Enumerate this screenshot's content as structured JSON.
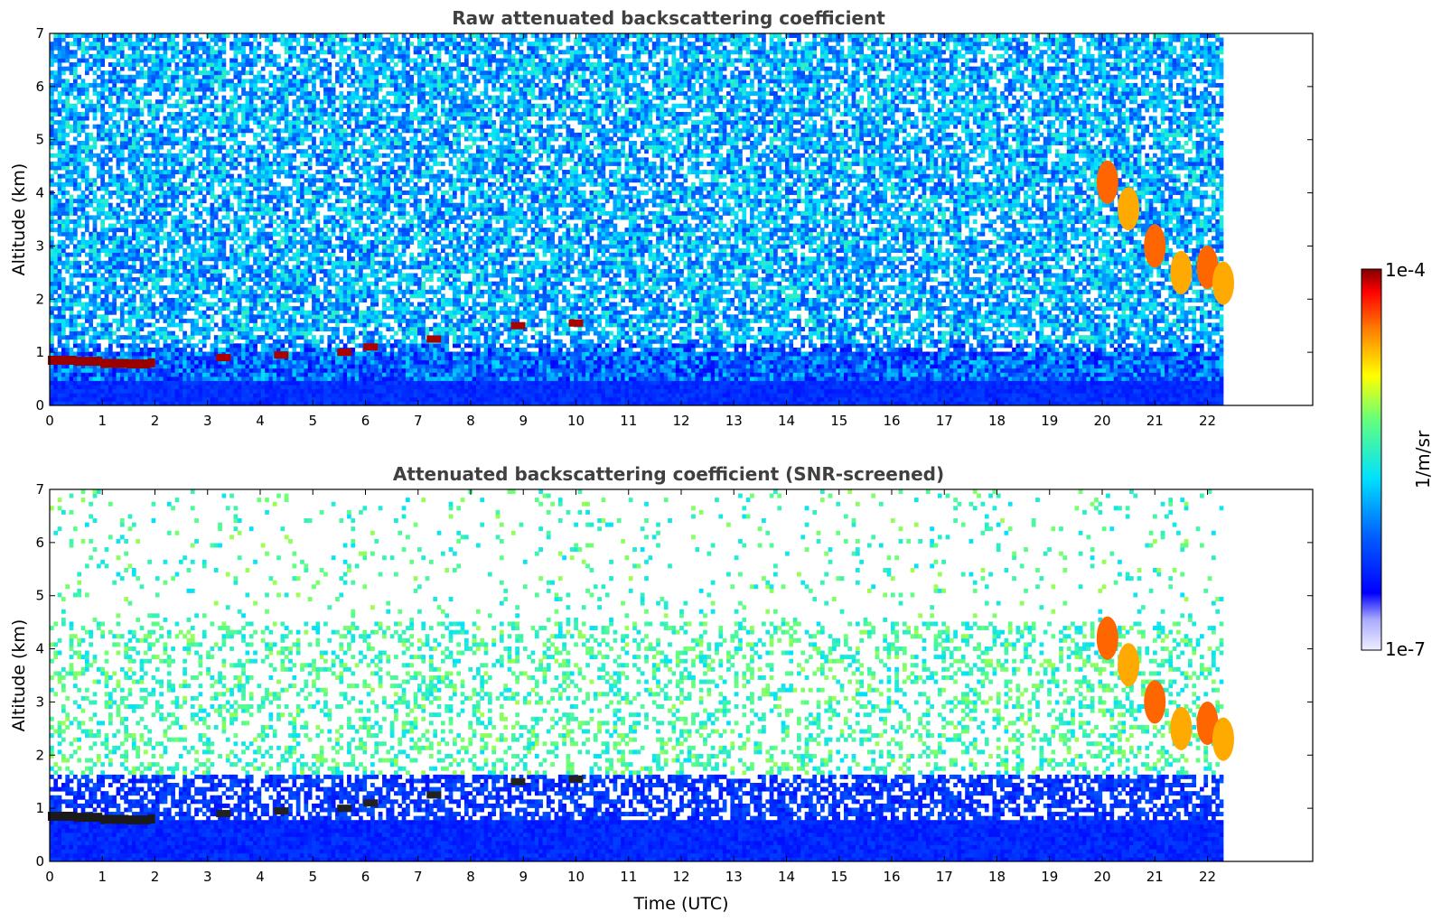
{
  "chart_data": [
    {
      "type": "heatmap",
      "title": "Raw attenuated backscattering coefficient",
      "xlabel": "",
      "ylabel": "Altitude (km)",
      "x_ticks": [
        "0",
        "1",
        "2",
        "3",
        "4",
        "5",
        "6",
        "7",
        "8",
        "9",
        "10",
        "11",
        "12",
        "13",
        "14",
        "15",
        "16",
        "17",
        "18",
        "19",
        "20",
        "21",
        "22"
      ],
      "y_ticks": [
        "0",
        "1",
        "2",
        "3",
        "4",
        "5",
        "6",
        "7"
      ],
      "xlim": [
        0,
        24
      ],
      "ylim": [
        0,
        7
      ],
      "data_extent_x": [
        0,
        22.3
      ],
      "color_scale": "log",
      "features": [
        {
          "kind": "boundary-layer cloud base",
          "x": [
            0,
            0.5,
            1,
            1.5,
            1.9
          ],
          "y": [
            0.85,
            0.83,
            0.79,
            0.78,
            0.8
          ]
        },
        {
          "kind": "cloud fragments",
          "x": [
            3.3,
            4.4,
            5.6,
            6.1,
            7.3,
            8.9,
            10.0
          ],
          "y": [
            0.9,
            0.95,
            1.0,
            1.1,
            1.25,
            1.5,
            1.55
          ]
        },
        {
          "kind": "mid-level cloud",
          "x": [
            20.1,
            20.5,
            21.0,
            21.5,
            22.0,
            22.3
          ],
          "y": [
            4.2,
            3.7,
            3.0,
            2.5,
            2.6,
            2.3
          ]
        }
      ]
    },
    {
      "type": "heatmap",
      "title": "Attenuated backscattering coefficient (SNR-screened)",
      "xlabel": "Time (UTC)",
      "ylabel": "Altitude (km)",
      "x_ticks": [
        "0",
        "1",
        "2",
        "3",
        "4",
        "5",
        "6",
        "7",
        "8",
        "9",
        "10",
        "11",
        "12",
        "13",
        "14",
        "15",
        "16",
        "17",
        "18",
        "19",
        "20",
        "21",
        "22"
      ],
      "y_ticks": [
        "0",
        "1",
        "2",
        "3",
        "4",
        "5",
        "6",
        "7"
      ],
      "xlim": [
        0,
        24
      ],
      "ylim": [
        0,
        7
      ],
      "data_extent_x": [
        0,
        22.3
      ],
      "color_scale": "log",
      "features": [
        {
          "kind": "boundary-layer cloud base",
          "x": [
            0,
            0.5,
            1,
            1.5,
            1.9
          ],
          "y": [
            0.85,
            0.83,
            0.79,
            0.78,
            0.8
          ]
        },
        {
          "kind": "cloud fragments",
          "x": [
            3.3,
            4.4,
            5.6,
            6.1,
            7.3,
            8.9,
            10.0
          ],
          "y": [
            0.9,
            0.95,
            1.0,
            1.1,
            1.25,
            1.5,
            1.55
          ]
        },
        {
          "kind": "mid-level cloud",
          "x": [
            20.1,
            20.5,
            21.0,
            21.5,
            22.0,
            22.3
          ],
          "y": [
            4.2,
            3.7,
            3.0,
            2.5,
            2.6,
            2.3
          ]
        }
      ]
    }
  ],
  "colorbar": {
    "max_label": "1e-4",
    "min_label": "1e-7",
    "unit_label": "1/m/sr",
    "colors": [
      "#f0f0ff",
      "#0000ff",
      "#00ffff",
      "#ffff00",
      "#ff0000",
      "#800000"
    ]
  }
}
